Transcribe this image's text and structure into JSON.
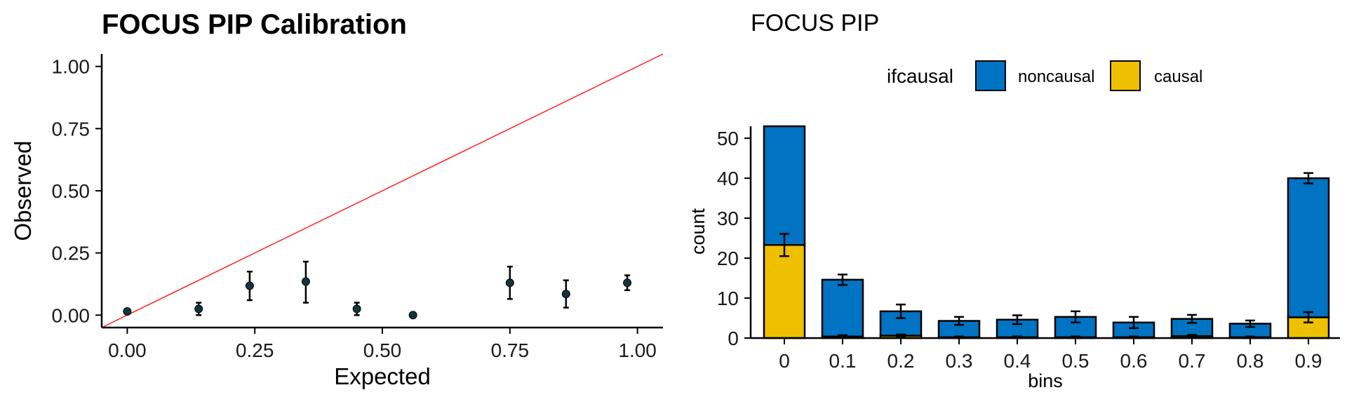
{
  "chart_data": [
    {
      "type": "scatter",
      "title": "FOCUS PIP Calibration",
      "xlabel": "Expected",
      "ylabel": "Observed",
      "xlim": [
        -0.05,
        1.05
      ],
      "ylim": [
        -0.05,
        1.05
      ],
      "xticks": [
        "0.00",
        "0.25",
        "0.50",
        "0.75",
        "1.00"
      ],
      "yticks": [
        "0.00",
        "0.25",
        "0.50",
        "0.75",
        "1.00"
      ],
      "reference_line": {
        "slope": 1,
        "intercept": 0,
        "color": "#ff2020"
      },
      "point_color": "#14353f",
      "points": [
        {
          "x": 0.0,
          "y": 0.015,
          "ymin": 0.015,
          "ymax": 0.015
        },
        {
          "x": 0.14,
          "y": 0.025,
          "ymin": 0.0,
          "ymax": 0.05
        },
        {
          "x": 0.24,
          "y": 0.118,
          "ymin": 0.06,
          "ymax": 0.175
        },
        {
          "x": 0.35,
          "y": 0.135,
          "ymin": 0.05,
          "ymax": 0.215
        },
        {
          "x": 0.45,
          "y": 0.025,
          "ymin": 0.0,
          "ymax": 0.05
        },
        {
          "x": 0.56,
          "y": 0.0,
          "ymin": 0.0,
          "ymax": 0.0
        },
        {
          "x": 0.75,
          "y": 0.13,
          "ymin": 0.065,
          "ymax": 0.195
        },
        {
          "x": 0.86,
          "y": 0.085,
          "ymin": 0.03,
          "ymax": 0.14
        },
        {
          "x": 0.98,
          "y": 0.13,
          "ymin": 0.1,
          "ymax": 0.16
        }
      ],
      "grid": false
    },
    {
      "type": "bar",
      "stacked": true,
      "title": "FOCUS PIP",
      "xlabel": "bins",
      "ylabel": "count",
      "ylim": [
        0,
        53
      ],
      "yticks": [
        "0",
        "10",
        "20",
        "30",
        "40",
        "50"
      ],
      "categories": [
        "0",
        "0.1",
        "0.2",
        "0.3",
        "0.4",
        "0.5",
        "0.6",
        "0.7",
        "0.8",
        "0.9"
      ],
      "legend": {
        "title": "ifcausal",
        "position": "top"
      },
      "series": [
        {
          "name": "causal",
          "color": "#efc000",
          "values": [
            23.3,
            0.4,
            0.6,
            0.2,
            0.2,
            0.2,
            0.2,
            0.5,
            0.2,
            5.2
          ],
          "err": [
            2.8,
            0.3,
            0.3,
            0.2,
            0.2,
            0.2,
            0.2,
            0.3,
            0.2,
            1.3
          ]
        },
        {
          "name": "noncausal",
          "color": "#0073c2",
          "values": [
            29.7,
            14.2,
            6.1,
            4.1,
            4.4,
            5.1,
            3.7,
            4.3,
            3.4,
            34.8
          ],
          "err": [
            0,
            1.3,
            1.7,
            1.0,
            1.1,
            1.4,
            1.4,
            1.0,
            0.8,
            1.3
          ]
        }
      ],
      "grid": false
    }
  ]
}
